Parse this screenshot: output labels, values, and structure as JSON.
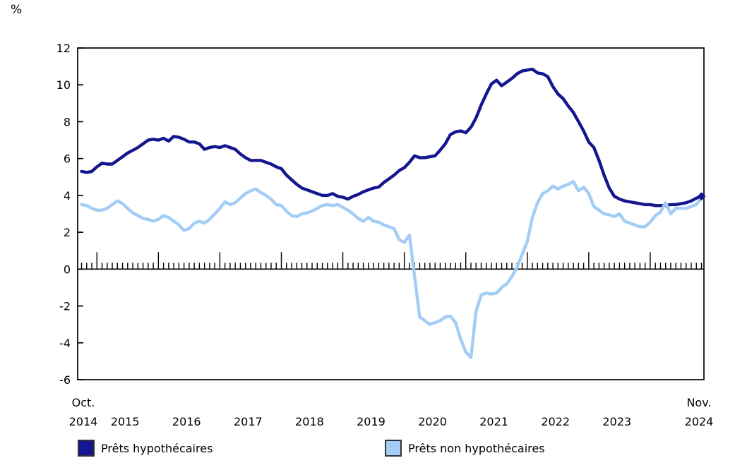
{
  "unit_label": "%",
  "chart_data": {
    "type": "line",
    "title": "",
    "ylabel": "%",
    "ylim": [
      -6,
      12
    ],
    "yticks": [
      12,
      10,
      8,
      6,
      4,
      2,
      0,
      -2,
      -4,
      -6
    ],
    "grid": "none",
    "legend_position": "bottom",
    "x_start": "Oct. 2014",
    "x_end": "Nov. 2024",
    "months_total": 122,
    "x_axis": {
      "first": {
        "line1": "Oct.",
        "line2": "2014"
      },
      "years": [
        "2015",
        "2016",
        "2017",
        "2018",
        "2019",
        "2020",
        "2021",
        "2022",
        "2023"
      ],
      "last": {
        "line1": "Nov.",
        "line2": "2024"
      }
    },
    "series": [
      {
        "name": "Prêts hypothécaires",
        "color": "#15158F",
        "end_marker": true,
        "values": [
          5.3,
          5.25,
          5.3,
          5.55,
          5.75,
          5.7,
          5.7,
          5.9,
          6.1,
          6.3,
          6.45,
          6.6,
          6.8,
          7.0,
          7.05,
          7.0,
          7.1,
          6.95,
          7.2,
          7.15,
          7.05,
          6.9,
          6.9,
          6.8,
          6.5,
          6.6,
          6.65,
          6.6,
          6.7,
          6.6,
          6.5,
          6.25,
          6.05,
          5.9,
          5.9,
          5.9,
          5.8,
          5.7,
          5.55,
          5.45,
          5.1,
          4.85,
          4.6,
          4.4,
          4.3,
          4.2,
          4.1,
          4.0,
          4.0,
          4.1,
          3.95,
          3.9,
          3.8,
          3.95,
          4.05,
          4.2,
          4.3,
          4.4,
          4.45,
          4.7,
          4.9,
          5.1,
          5.35,
          5.5,
          5.8,
          6.15,
          6.05,
          6.05,
          6.1,
          6.15,
          6.45,
          6.8,
          7.3,
          7.45,
          7.5,
          7.4,
          7.7,
          8.2,
          8.9,
          9.5,
          10.05,
          10.25,
          9.95,
          10.15,
          10.35,
          10.6,
          10.75,
          10.8,
          10.85,
          10.65,
          10.6,
          10.45,
          9.9,
          9.5,
          9.25,
          8.85,
          8.5,
          8.0,
          7.5,
          6.9,
          6.6,
          5.9,
          5.1,
          4.4,
          3.95,
          3.8,
          3.7,
          3.65,
          3.6,
          3.55,
          3.5,
          3.5,
          3.45,
          3.45,
          3.45,
          3.5,
          3.5,
          3.55,
          3.6,
          3.7,
          3.85,
          3.95
        ]
      },
      {
        "name": "Prêts non hypothécaires",
        "color": "#A3CDF6",
        "end_marker": false,
        "values": [
          3.5,
          3.45,
          3.3,
          3.2,
          3.2,
          3.3,
          3.5,
          3.7,
          3.55,
          3.3,
          3.05,
          2.9,
          2.75,
          2.7,
          2.6,
          2.7,
          2.9,
          2.8,
          2.6,
          2.4,
          2.1,
          2.2,
          2.5,
          2.6,
          2.5,
          2.7,
          3.0,
          3.3,
          3.65,
          3.5,
          3.6,
          3.85,
          4.1,
          4.25,
          4.35,
          4.15,
          4.0,
          3.8,
          3.5,
          3.45,
          3.15,
          2.9,
          2.85,
          3.0,
          3.05,
          3.15,
          3.3,
          3.45,
          3.5,
          3.45,
          3.5,
          3.35,
          3.2,
          3.0,
          2.75,
          2.6,
          2.8,
          2.6,
          2.55,
          2.4,
          2.3,
          2.2,
          1.6,
          1.45,
          1.85,
          -0.4,
          -2.6,
          -2.8,
          -3.0,
          -2.9,
          -2.8,
          -2.6,
          -2.55,
          -2.9,
          -3.8,
          -4.5,
          -4.8,
          -2.3,
          -1.4,
          -1.3,
          -1.35,
          -1.3,
          -1.0,
          -0.8,
          -0.4,
          0.1,
          0.8,
          1.5,
          2.8,
          3.6,
          4.1,
          4.25,
          4.5,
          4.35,
          4.5,
          4.6,
          4.75,
          4.25,
          4.45,
          4.1,
          3.4,
          3.2,
          3.0,
          2.95,
          2.85,
          3.0,
          2.6,
          2.5,
          2.4,
          2.3,
          2.3,
          2.55,
          2.9,
          3.1,
          3.6,
          3.0,
          3.3,
          3.3,
          3.3,
          3.4,
          3.5,
          3.85
        ]
      }
    ]
  }
}
